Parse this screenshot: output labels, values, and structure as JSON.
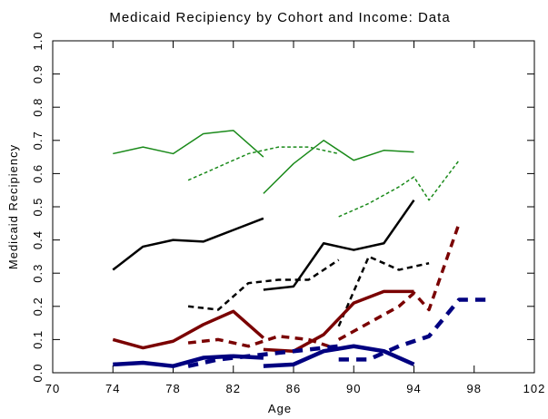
{
  "chart_data": {
    "type": "line",
    "title": "Medicaid Recipiency by Cohort and Income:  Data",
    "xlabel": "Age",
    "ylabel": "Medicaid Recipiency",
    "xlim": [
      70,
      102
    ],
    "xticks": [
      70,
      74,
      78,
      82,
      86,
      90,
      94,
      98,
      102
    ],
    "ylim": [
      0,
      1
    ],
    "yticks": [
      {
        "value": 0,
        "label": "0.0"
      },
      0.1,
      0.2,
      0.3,
      0.4,
      0.5,
      0.6,
      0.7,
      0.8,
      0.9,
      {
        "value": 1,
        "label": "1.0"
      }
    ],
    "series": [
      {
        "color": "#1a8a1a",
        "width": 1.5,
        "dash": false,
        "x": [
          74,
          76,
          78,
          80,
          82,
          84
        ],
        "values": [
          0.66,
          0.68,
          0.66,
          0.72,
          0.73,
          0.65
        ]
      },
      {
        "color": "#1a8a1a",
        "width": 1.5,
        "dash": false,
        "x": [
          84,
          86,
          88,
          90,
          92,
          94
        ],
        "values": [
          0.54,
          0.63,
          0.7,
          0.64,
          0.67,
          0.665
        ]
      },
      {
        "color": "#1a8a1a",
        "width": 1.5,
        "dash": true,
        "x": [
          79,
          81,
          83,
          85,
          87,
          89
        ],
        "values": [
          0.58,
          0.62,
          0.66,
          0.68,
          0.68,
          0.66
        ]
      },
      {
        "color": "#1a8a1a",
        "width": 1.5,
        "dash": true,
        "x": [
          89,
          91,
          93,
          94,
          95,
          97
        ],
        "values": [
          0.47,
          0.51,
          0.56,
          0.59,
          0.52,
          0.64
        ]
      },
      {
        "color": "#000000",
        "width": 2.5,
        "dash": false,
        "x": [
          74,
          76,
          78,
          80,
          82,
          84
        ],
        "values": [
          0.31,
          0.38,
          0.4,
          0.395,
          0.43,
          0.465
        ]
      },
      {
        "color": "#000000",
        "width": 2.5,
        "dash": false,
        "x": [
          84,
          86,
          88,
          90,
          92,
          94
        ],
        "values": [
          0.25,
          0.26,
          0.39,
          0.37,
          0.39,
          0.52
        ]
      },
      {
        "color": "#000000",
        "width": 2.5,
        "dash": true,
        "x": [
          79,
          81,
          83,
          85,
          87,
          89
        ],
        "values": [
          0.2,
          0.19,
          0.27,
          0.28,
          0.28,
          0.34
        ]
      },
      {
        "color": "#000000",
        "width": 2.5,
        "dash": true,
        "x": [
          89,
          91,
          93,
          95
        ],
        "values": [
          0.14,
          0.35,
          0.31,
          0.33
        ]
      },
      {
        "color": "#7a0000",
        "width": 3.5,
        "dash": false,
        "x": [
          74,
          76,
          78,
          80,
          82,
          84
        ],
        "values": [
          0.1,
          0.075,
          0.095,
          0.145,
          0.185,
          0.105
        ]
      },
      {
        "color": "#7a0000",
        "width": 3.5,
        "dash": false,
        "x": [
          84,
          86,
          88,
          90,
          92,
          94
        ],
        "values": [
          0.07,
          0.065,
          0.115,
          0.21,
          0.245,
          0.245
        ]
      },
      {
        "color": "#7a0000",
        "width": 3.5,
        "dash": true,
        "x": [
          79,
          81,
          83,
          85,
          87,
          89
        ],
        "values": [
          0.09,
          0.1,
          0.08,
          0.11,
          0.1,
          0.07
        ]
      },
      {
        "color": "#7a0000",
        "width": 3.5,
        "dash": true,
        "x": [
          89,
          91,
          93,
          94,
          95,
          97
        ],
        "values": [
          0.1,
          0.15,
          0.2,
          0.24,
          0.19,
          0.45
        ]
      },
      {
        "color": "#000080",
        "width": 4.5,
        "dash": false,
        "x": [
          74,
          76,
          78,
          80,
          82,
          84
        ],
        "values": [
          0.025,
          0.03,
          0.02,
          0.045,
          0.05,
          0.045
        ]
      },
      {
        "color": "#000080",
        "width": 4.5,
        "dash": false,
        "x": [
          84,
          86,
          88,
          90,
          92,
          94
        ],
        "values": [
          0.02,
          0.025,
          0.065,
          0.08,
          0.065,
          0.025
        ]
      },
      {
        "color": "#000080",
        "width": 4.5,
        "dash": true,
        "x": [
          79,
          81,
          83,
          85,
          87,
          89
        ],
        "values": [
          0.02,
          0.04,
          0.05,
          0.06,
          0.07,
          0.08
        ]
      },
      {
        "color": "#000080",
        "width": 4.5,
        "dash": true,
        "x": [
          89,
          91,
          93,
          95,
          97,
          99
        ],
        "values": [
          0.04,
          0.04,
          0.08,
          0.11,
          0.22,
          0.22
        ]
      }
    ]
  }
}
